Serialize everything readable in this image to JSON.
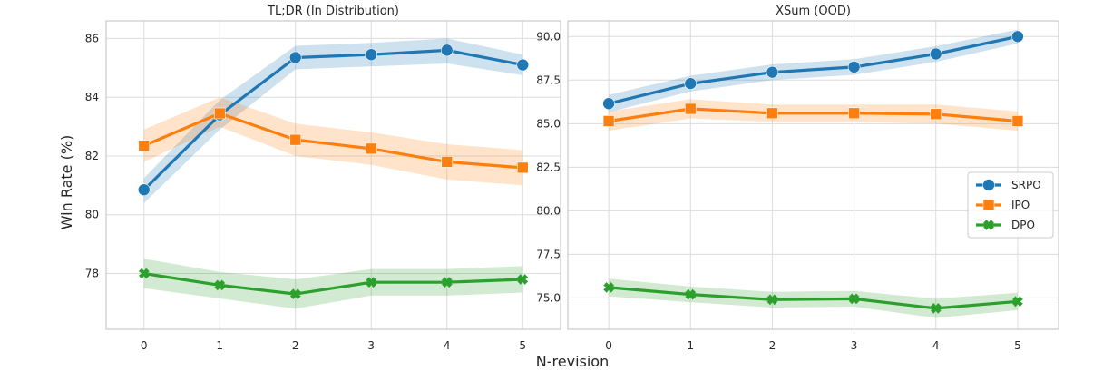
{
  "chart_data": {
    "type": "line",
    "shared_xlabel": "N-revision",
    "shared_ylabel": "Win Rate (%)",
    "legend": {
      "placement": "center-right",
      "panel": 1
    },
    "colors": {
      "SRPO": "#1f77b4",
      "IPO": "#ff7f0e",
      "DPO": "#2ca02c"
    },
    "markers": {
      "SRPO": "circle",
      "IPO": "square",
      "DPO": "x"
    },
    "grid": true,
    "panels": [
      {
        "title": "TL;DR (In Distribution)",
        "x": [
          0,
          1,
          2,
          3,
          4,
          5
        ],
        "xlim": [
          -0.5,
          5.5
        ],
        "ylim": [
          76.1,
          86.6
        ],
        "yticks": [
          78,
          80,
          82,
          84,
          86
        ],
        "tick_decimals": 0,
        "series": [
          {
            "name": "SRPO",
            "values": [
              80.85,
              83.4,
              85.35,
              85.45,
              85.6,
              85.1
            ],
            "lower": [
              80.4,
              82.9,
              84.95,
              85.05,
              85.15,
              84.75
            ],
            "upper": [
              81.25,
              83.9,
              85.75,
              85.85,
              86.0,
              85.45
            ]
          },
          {
            "name": "IPO",
            "values": [
              82.35,
              83.45,
              82.55,
              82.25,
              81.8,
              81.6
            ],
            "lower": [
              81.8,
              83.0,
              82.0,
              81.7,
              81.2,
              81.0
            ],
            "upper": [
              82.9,
              84.0,
              83.1,
              82.8,
              82.4,
              82.2
            ]
          },
          {
            "name": "DPO",
            "values": [
              78.0,
              77.6,
              77.3,
              77.7,
              77.7,
              77.8
            ],
            "lower": [
              77.5,
              77.15,
              76.8,
              77.25,
              77.25,
              77.35
            ],
            "upper": [
              78.5,
              78.05,
              77.8,
              78.15,
              78.15,
              78.25
            ]
          }
        ]
      },
      {
        "title": "XSum (OOD)",
        "x": [
          0,
          1,
          2,
          3,
          4,
          5
        ],
        "xlim": [
          -0.5,
          5.5
        ],
        "ylim": [
          73.2,
          90.9
        ],
        "yticks": [
          75.0,
          77.5,
          80.0,
          82.5,
          85.0,
          87.5,
          90.0
        ],
        "tick_decimals": 1,
        "series": [
          {
            "name": "SRPO",
            "values": [
              86.15,
              87.3,
              87.95,
              88.25,
              89.0,
              90.0
            ],
            "lower": [
              85.65,
              86.85,
              87.5,
              87.8,
              88.55,
              89.6
            ],
            "upper": [
              86.65,
              87.75,
              88.4,
              88.7,
              89.45,
              90.4
            ]
          },
          {
            "name": "IPO",
            "values": [
              85.15,
              85.85,
              85.6,
              85.6,
              85.55,
              85.15
            ],
            "lower": [
              84.6,
              85.3,
              85.1,
              85.1,
              85.0,
              84.6
            ],
            "upper": [
              85.7,
              86.4,
              86.1,
              86.1,
              86.1,
              85.7
            ]
          },
          {
            "name": "DPO",
            "values": [
              75.6,
              75.2,
              74.9,
              74.95,
              74.4,
              74.8
            ],
            "lower": [
              75.1,
              74.75,
              74.45,
              74.5,
              73.85,
              74.3
            ],
            "upper": [
              76.1,
              75.65,
              75.35,
              75.4,
              74.95,
              75.3
            ]
          }
        ]
      }
    ]
  }
}
